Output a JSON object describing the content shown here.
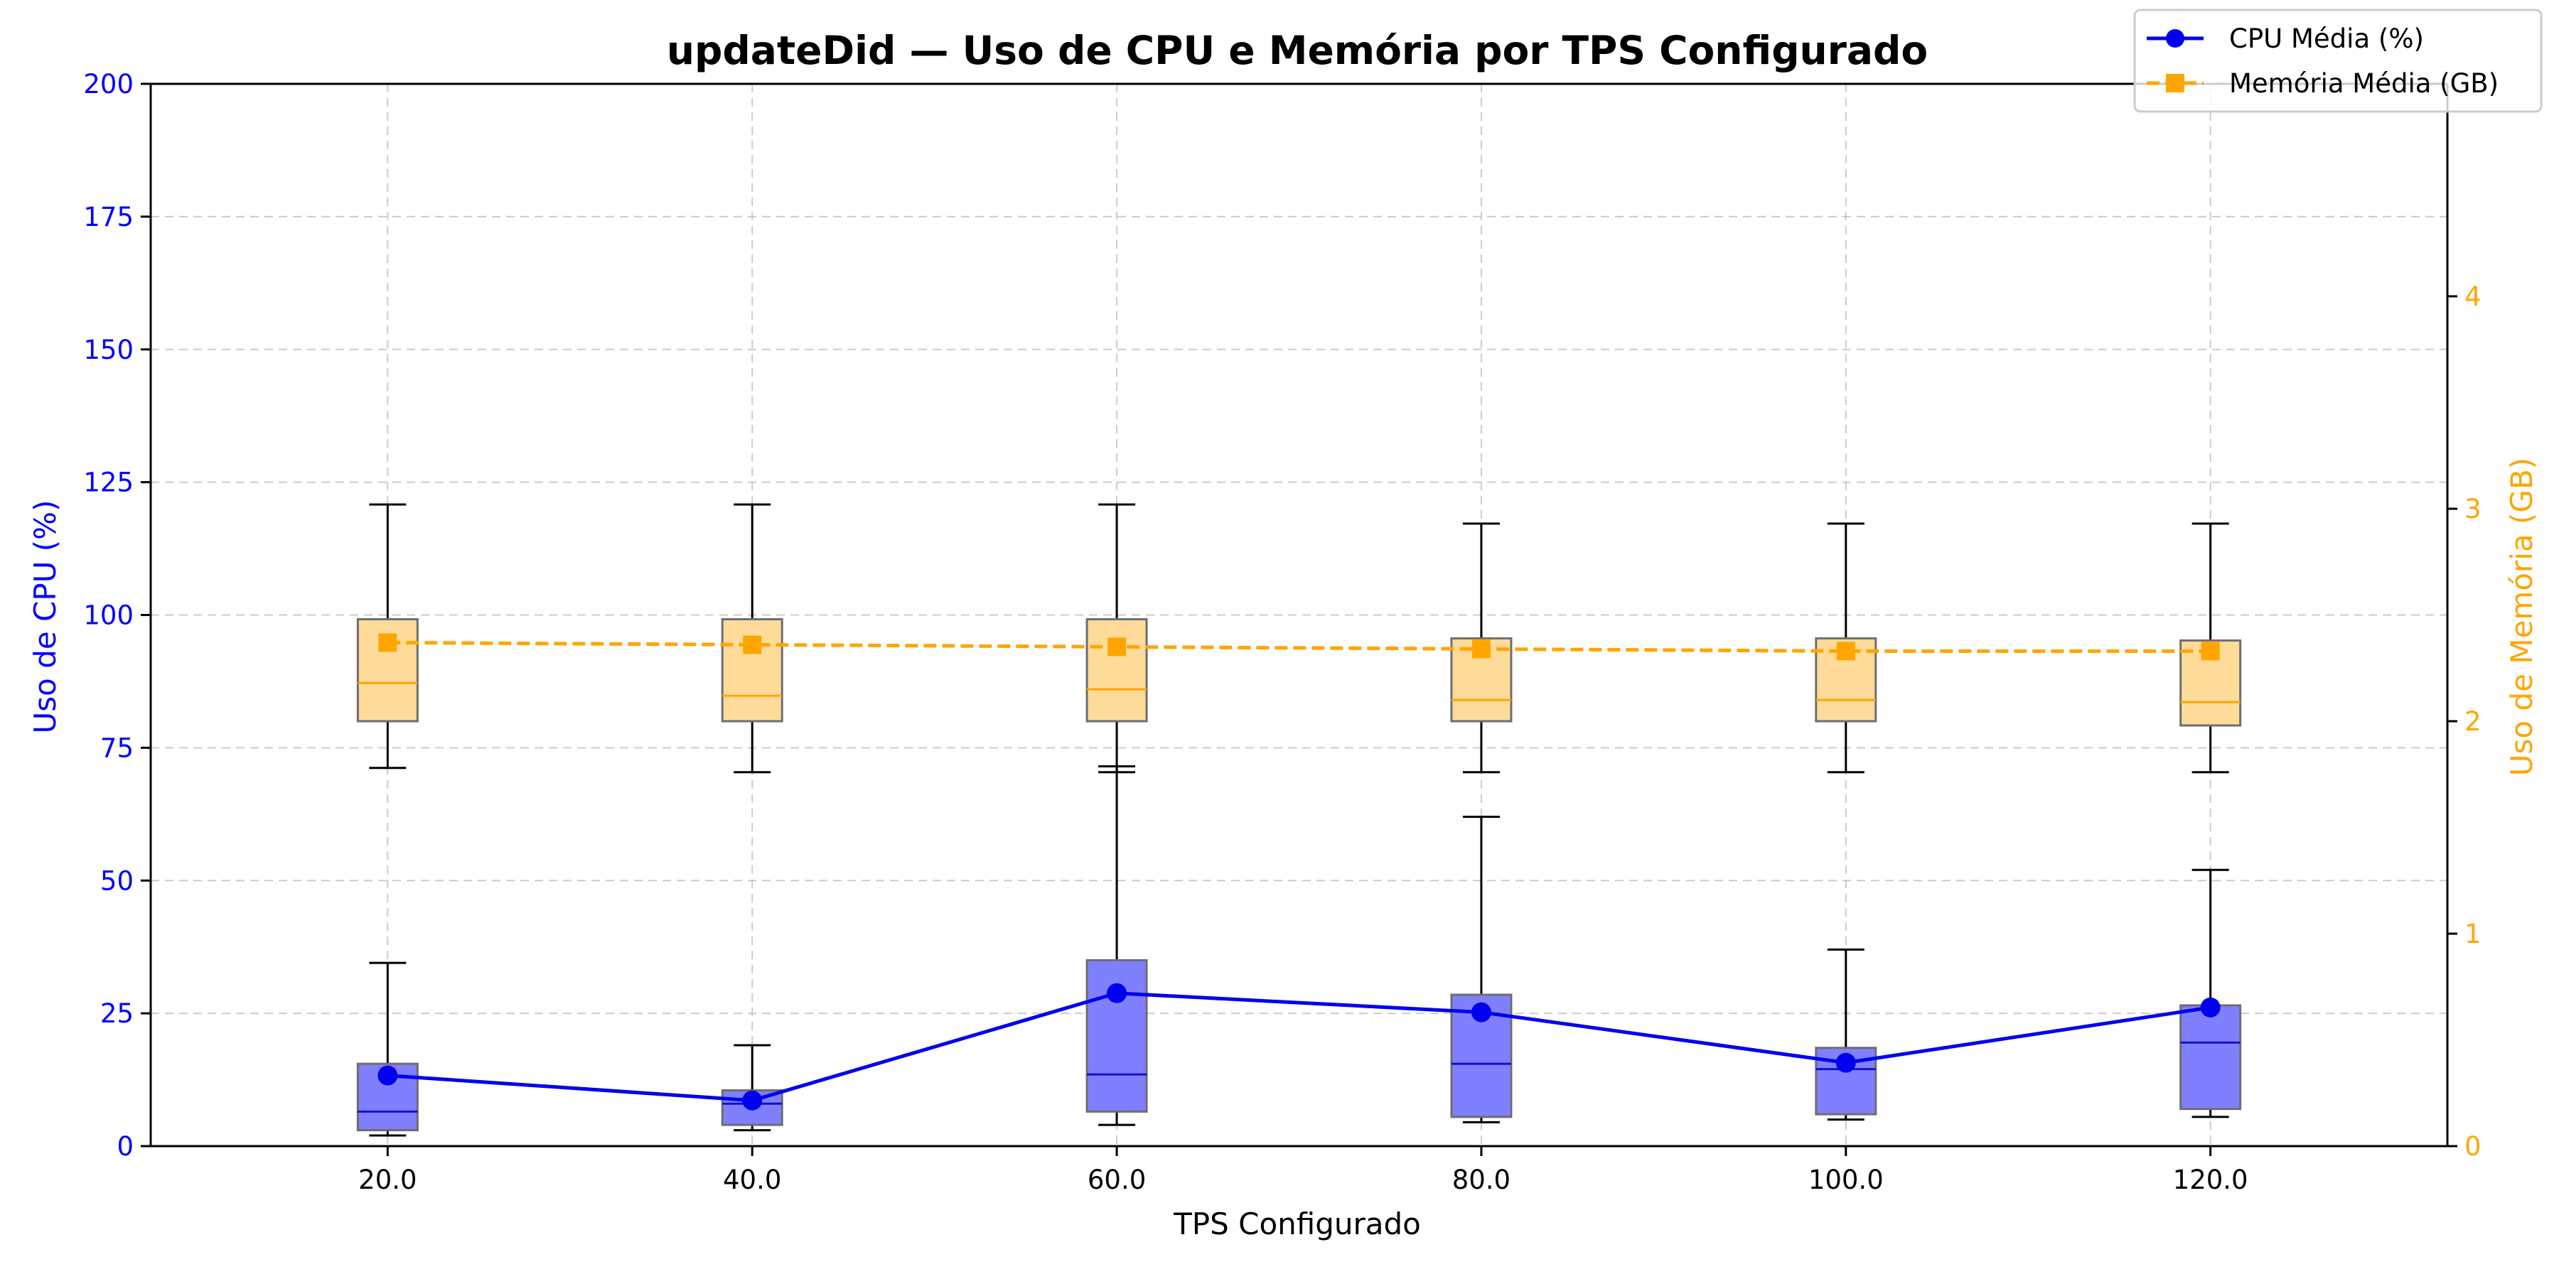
{
  "chart_data": {
    "type": "box",
    "title": "updateDid — Uso de CPU e Memória por TPS Configurado",
    "xlabel": "TPS Configurado",
    "ylabel_left": "Uso de CPU (%)",
    "ylabel_right": "Uso de Memória (GB)",
    "x_labels": [
      "20.0",
      "40.0",
      "60.0",
      "80.0",
      "100.0",
      "120.0"
    ],
    "y_left_ticks": [
      "0",
      "25",
      "50",
      "75",
      "100",
      "125",
      "150",
      "175",
      "200"
    ],
    "y_right_ticks": [
      "0",
      "1",
      "2",
      "3",
      "4"
    ],
    "ylim_left": [
      0,
      200
    ],
    "ylim_right": [
      0,
      5
    ],
    "grid": true,
    "legend_position": "top-right",
    "legend": {
      "cpu": "CPU Média (%)",
      "mem": "Memória Média (GB)"
    },
    "colors": {
      "cpu": "#0000ee",
      "cpu_box": "#8080ff",
      "mem": "#ffa500",
      "mem_box": "#ffdb99",
      "left_axis": "#0000ff",
      "right_axis": "#ffa500"
    },
    "cpu_boxes": [
      {
        "whislo": 2,
        "q1": 3,
        "med": 6.5,
        "q3": 15.5,
        "whishi": 34.5
      },
      {
        "whislo": 3,
        "q1": 4,
        "med": 8,
        "q3": 10.5,
        "whishi": 19
      },
      {
        "whislo": 4,
        "q1": 6.5,
        "med": 13.5,
        "q3": 35,
        "whishi": 71.5
      },
      {
        "whislo": 4.5,
        "q1": 5.5,
        "med": 15.5,
        "q3": 28.5,
        "whishi": 62
      },
      {
        "whislo": 5,
        "q1": 6,
        "med": 14.5,
        "q3": 18.5,
        "whishi": 37
      },
      {
        "whislo": 5.5,
        "q1": 7,
        "med": 19.5,
        "q3": 26.5,
        "whishi": 52
      }
    ],
    "cpu_mean": [
      13.3,
      8.6,
      28.8,
      25.2,
      15.7,
      26.1
    ],
    "mem_boxes": [
      {
        "whislo": 1.78,
        "q1": 2.0,
        "med": 2.18,
        "q3": 2.48,
        "whishi": 3.02
      },
      {
        "whislo": 1.76,
        "q1": 2.0,
        "med": 2.12,
        "q3": 2.48,
        "whishi": 3.02
      },
      {
        "whislo": 1.76,
        "q1": 2.0,
        "med": 2.15,
        "q3": 2.48,
        "whishi": 3.02
      },
      {
        "whislo": 1.76,
        "q1": 2.0,
        "med": 2.1,
        "q3": 2.39,
        "whishi": 2.93
      },
      {
        "whislo": 1.76,
        "q1": 2.0,
        "med": 2.1,
        "q3": 2.39,
        "whishi": 2.93
      },
      {
        "whislo": 1.76,
        "q1": 1.98,
        "med": 2.09,
        "q3": 2.38,
        "whishi": 2.93
      }
    ],
    "mem_mean": [
      2.37,
      2.36,
      2.35,
      2.34,
      2.33,
      2.33
    ]
  }
}
